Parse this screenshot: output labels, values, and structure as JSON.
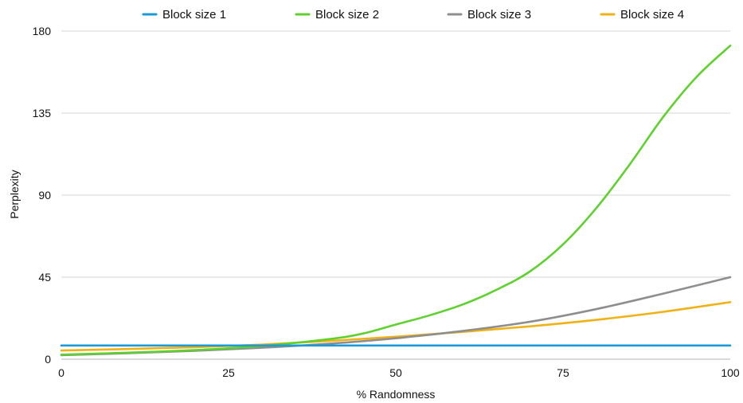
{
  "chart_data": {
    "type": "line",
    "title": "",
    "xlabel": "% Randomness",
    "ylabel": "Perplexity",
    "xlim": [
      0,
      100
    ],
    "ylim": [
      0,
      180
    ],
    "x_ticks": [
      0,
      25,
      50,
      75,
      100
    ],
    "y_ticks": [
      0,
      45,
      90,
      135,
      180
    ],
    "grid": "horizontal",
    "legend_position": "top",
    "series": [
      {
        "name": "Block size 1",
        "color": "#1a9ad6",
        "x": [
          0,
          10,
          20,
          30,
          40,
          50,
          60,
          70,
          80,
          90,
          100
        ],
        "y": [
          7.5,
          7.5,
          7.5,
          7.5,
          7.5,
          7.5,
          7.5,
          7.5,
          7.5,
          7.5,
          7.5
        ]
      },
      {
        "name": "Block size 2",
        "color": "#5fd12e",
        "x": [
          0,
          10,
          20,
          30,
          40,
          45,
          50,
          55,
          60,
          65,
          70,
          75,
          80,
          85,
          90,
          95,
          100
        ],
        "y": [
          2.5,
          3.6,
          5,
          7.3,
          11,
          14,
          19,
          24,
          30,
          38,
          48,
          63,
          83,
          107,
          133,
          155,
          172
        ]
      },
      {
        "name": "Block size 3",
        "color": "#8e8e8e",
        "x": [
          0,
          10,
          20,
          30,
          40,
          50,
          60,
          70,
          80,
          90,
          100
        ],
        "y": [
          2.2,
          3.3,
          4.6,
          6.3,
          8.5,
          11.5,
          15.5,
          20.5,
          27.5,
          36,
          45
        ]
      },
      {
        "name": "Block size 4",
        "color": "#f0b114",
        "x": [
          0,
          10,
          20,
          30,
          40,
          50,
          60,
          70,
          80,
          90,
          100
        ],
        "y": [
          4.8,
          5.6,
          6.6,
          8.0,
          10.0,
          12.3,
          15.0,
          18.0,
          21.6,
          26.0,
          31.3
        ]
      }
    ]
  }
}
